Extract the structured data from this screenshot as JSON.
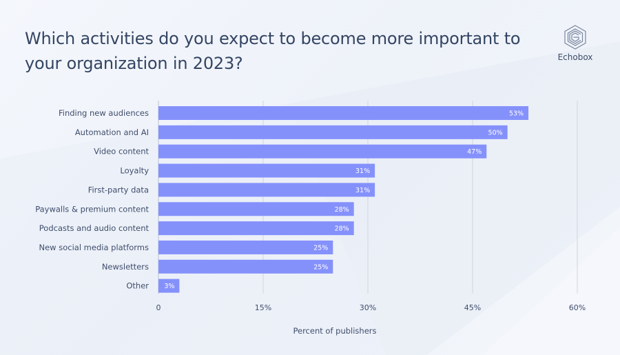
{
  "header": {
    "title": "Which activities do you expect to become more important to your organization in 2023?",
    "brand": "Echobox"
  },
  "colors": {
    "bar": "#8591fb",
    "text": "#344563",
    "grid": "#cfd5df"
  },
  "chart_data": {
    "type": "bar",
    "orientation": "horizontal",
    "title": "Which activities do you expect to become more important to your organization in 2023?",
    "xlabel": "Percent of publishers",
    "ylabel": "",
    "categories": [
      "Finding new audiences",
      "Automation and AI",
      "Video content",
      "Loyalty",
      "First-party data",
      "Paywalls & premium content",
      "Podcasts and audio content",
      "New social media platforms",
      "Newsletters",
      "Other"
    ],
    "values": [
      53,
      50,
      47,
      31,
      31,
      28,
      28,
      25,
      25,
      3
    ],
    "value_labels": [
      "53%",
      "50%",
      "47%",
      "31%",
      "31%",
      "28%",
      "28%",
      "25%",
      "25%",
      "3%"
    ],
    "xlim": [
      0,
      60
    ],
    "ticks": [
      0,
      15,
      30,
      45,
      60
    ],
    "tick_labels": [
      "0",
      "15%",
      "30%",
      "45%",
      "60%"
    ],
    "grid": true,
    "legend": "none"
  }
}
